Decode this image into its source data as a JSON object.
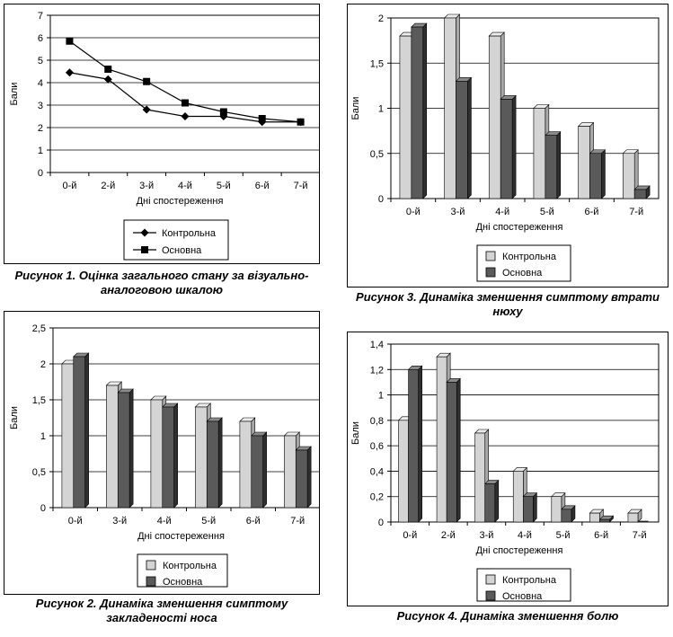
{
  "figures": [
    {
      "caption": "Рисунок 1. Оцінка загального стану за візуально-аналоговою шкалою",
      "chart_data": {
        "type": "line",
        "categories": [
          "0-й",
          "2-й",
          "3-й",
          "4-й",
          "5-й",
          "6-й",
          "7-й"
        ],
        "series": [
          {
            "name": "Контрольна",
            "values": [
              4.45,
              4.15,
              2.8,
              2.5,
              2.5,
              2.25,
              2.25
            ],
            "marker": "diamond"
          },
          {
            "name": "Основна",
            "values": [
              5.85,
              4.6,
              4.05,
              3.1,
              2.7,
              2.4,
              2.25
            ],
            "marker": "square"
          }
        ],
        "xlabel": "Дні спостереження",
        "ylabel": "Бали",
        "ylim": [
          0,
          7
        ],
        "yticks": [
          "0",
          "1",
          "2",
          "3",
          "4",
          "5",
          "6",
          "7"
        ],
        "grid": true,
        "legend": "bottom"
      }
    },
    {
      "caption": "Рисунок 2. Динаміка зменшення симптому закладеності носа",
      "chart_data": {
        "type": "bar",
        "categories": [
          "0-й",
          "3-й",
          "4-й",
          "5-й",
          "6-й",
          "7-й"
        ],
        "series": [
          {
            "name": "Контрольна",
            "values": [
              2.0,
              1.7,
              1.5,
              1.4,
              1.2,
              1.0
            ]
          },
          {
            "name": "Основна",
            "values": [
              2.1,
              1.6,
              1.4,
              1.2,
              1.0,
              0.8
            ]
          }
        ],
        "xlabel": "Дні спостереження",
        "ylabel": "Бали",
        "ylim": [
          0,
          2.5
        ],
        "yticks": [
          "0",
          "0,5",
          "1",
          "1,5",
          "2",
          "2,5"
        ],
        "grid": true,
        "legend": "bottom"
      }
    },
    {
      "caption": "Рисунок 3. Динаміка зменшення симптому втрати нюху",
      "chart_data": {
        "type": "bar",
        "categories": [
          "0-й",
          "3-й",
          "4-й",
          "5-й",
          "6-й",
          "7-й"
        ],
        "series": [
          {
            "name": "Контрольна",
            "values": [
              1.8,
              2.0,
              1.8,
              1.0,
              0.8,
              0.5
            ]
          },
          {
            "name": "Основна",
            "values": [
              1.9,
              1.3,
              1.1,
              0.7,
              0.5,
              0.1
            ]
          }
        ],
        "xlabel": "Дні спостереження",
        "ylabel": "Бали",
        "ylim": [
          0,
          2
        ],
        "yticks": [
          "0",
          "0,5",
          "1",
          "1,5",
          "2"
        ],
        "grid": true,
        "legend": "bottom"
      }
    },
    {
      "caption": "Рисунок 4. Динаміка зменшення болю",
      "chart_data": {
        "type": "bar",
        "categories": [
          "0-й",
          "2-й",
          "3-й",
          "4-й",
          "5-й",
          "6-й",
          "7-й"
        ],
        "series": [
          {
            "name": "Контрольна",
            "values": [
              0.8,
              1.3,
              0.7,
              0.4,
              0.2,
              0.07,
              0.07
            ]
          },
          {
            "name": "Основна",
            "values": [
              1.2,
              1.1,
              0.3,
              0.2,
              0.1,
              0.02,
              0.0
            ]
          }
        ],
        "xlabel": "Дні спостереження",
        "ylabel": "Бали",
        "ylim": [
          0,
          1.4
        ],
        "yticks": [
          "0",
          "0,2",
          "0,4",
          "0,6",
          "0,8",
          "1",
          "1,2",
          "1,4"
        ],
        "grid": true,
        "legend": "bottom"
      }
    }
  ],
  "colors": {
    "control_bar": "#d4d4d4",
    "main_bar": "#5a5a5a",
    "grid": "#000000",
    "line": "#000000"
  }
}
